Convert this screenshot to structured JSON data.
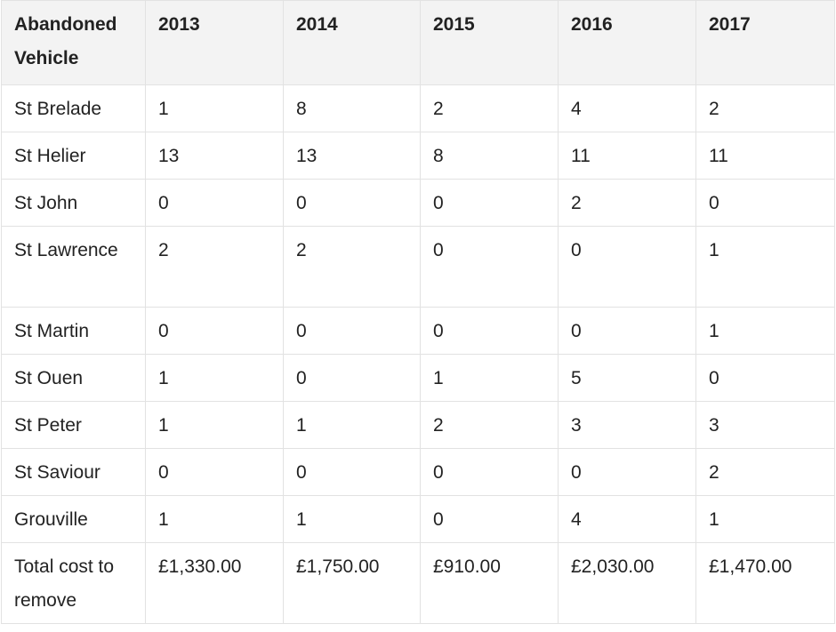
{
  "table": {
    "header": [
      "Abandoned Vehicle",
      "2013",
      "2014",
      "2015",
      "2016",
      "2017"
    ],
    "rows": [
      [
        "St Brelade",
        "1",
        "8",
        "2",
        "4",
        "2"
      ],
      [
        "St Helier",
        "13",
        "13",
        "8",
        "11",
        "11"
      ],
      [
        "St John",
        "0",
        "0",
        "0",
        "2",
        "0"
      ],
      [
        "St Lawrence",
        "2",
        "2",
        "0",
        "0",
        "1"
      ],
      [
        "St Martin",
        "0",
        "0",
        "0",
        "0",
        "1"
      ],
      [
        "St Ouen",
        "1",
        "0",
        "1",
        "5",
        "0"
      ],
      [
        "St Peter",
        "1",
        "1",
        "2",
        "3",
        "3"
      ],
      [
        "St Saviour",
        "0",
        "0",
        "0",
        "0",
        "2"
      ],
      [
        "Grouville",
        "1",
        "1",
        "0",
        "4",
        "1"
      ],
      [
        "Total cost to remove",
        "£1,330.00",
        "£1,750.00",
        "£910.00",
        "£2,030.00",
        "£1,470.00"
      ]
    ]
  }
}
